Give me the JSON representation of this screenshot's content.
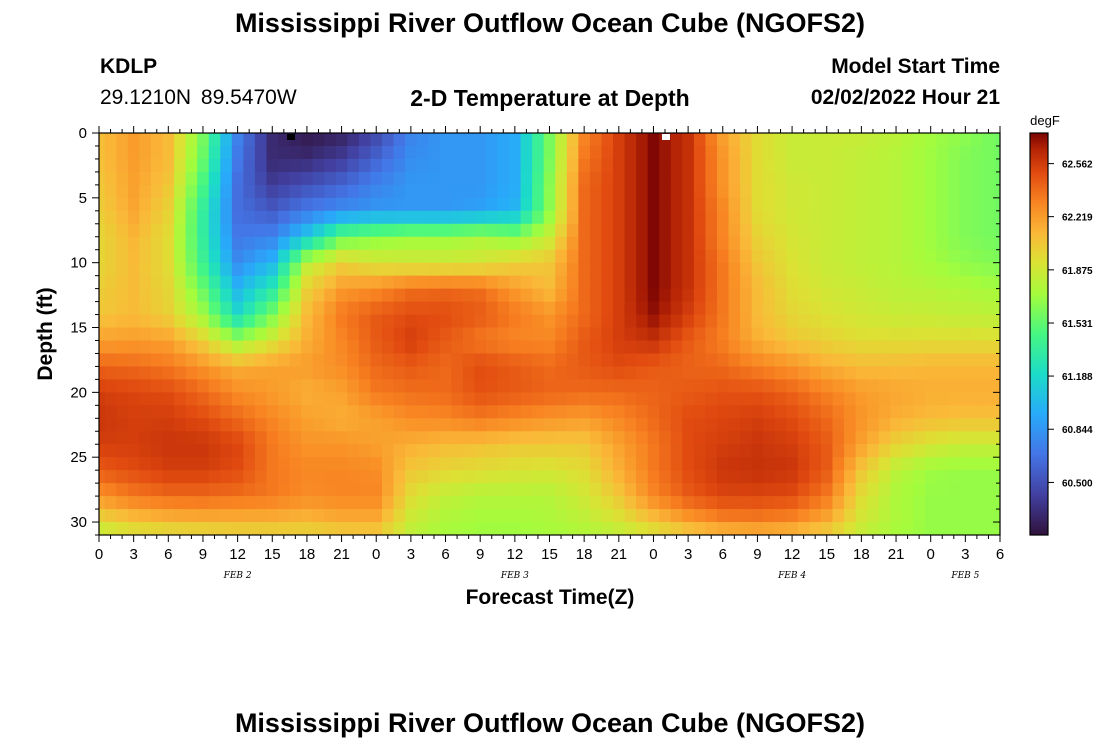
{
  "header": {
    "title": "Mississippi River Outflow Ocean Cube (NGOFS2)",
    "station_id": "KDLP",
    "station_coords": "29.1210N  89.5470W",
    "subtitle": "2-D Temperature at Depth",
    "model_start_label": "Model Start Time",
    "model_start_value": "02/02/2022 Hour 21"
  },
  "footer": {
    "title": "Mississippi River Outflow Ocean Cube (NGOFS2)"
  },
  "chart_data": {
    "type": "heatmap",
    "title": "2-D Temperature at Depth",
    "xlabel": "Forecast Time(Z)",
    "ylabel": "Depth (ft)",
    "x_tick_labels": [
      "0",
      "3",
      "6",
      "9",
      "12",
      "15",
      "18",
      "21",
      "0",
      "3",
      "6",
      "9",
      "12",
      "15",
      "18",
      "21",
      "0",
      "3",
      "6",
      "9",
      "12",
      "15",
      "18",
      "21",
      "0",
      "3",
      "6"
    ],
    "x_day_labels": [
      {
        "label": "FEB 2",
        "hour_index": 4
      },
      {
        "label": "FEB 3",
        "hour_index": 12
      },
      {
        "label": "FEB 4",
        "hour_index": 20
      },
      {
        "label": "FEB 5",
        "hour_index": 25
      }
    ],
    "y_ticks": [
      0,
      5,
      10,
      15,
      20,
      25,
      30
    ],
    "ylim": [
      0,
      31
    ],
    "colorbar": {
      "unit": "degF",
      "tick_labels": [
        "62.562",
        "62.219",
        "61.875",
        "61.531",
        "61.188",
        "60.844",
        "60.500"
      ],
      "range": [
        60.16,
        62.76
      ]
    },
    "depth_rows": [
      0,
      2,
      4,
      6,
      8,
      10,
      12,
      14,
      16,
      18,
      20,
      22,
      24,
      26,
      28,
      30,
      31
    ],
    "hour_cols": [
      0,
      3,
      6,
      9,
      12,
      15,
      18,
      21,
      24,
      27,
      30,
      33,
      36,
      39,
      42,
      45,
      48,
      51,
      54,
      57,
      60,
      63,
      66,
      69,
      72,
      75,
      78
    ],
    "values": [
      [
        62.08,
        62.22,
        62.1,
        61.6,
        60.75,
        60.3,
        60.2,
        60.25,
        60.45,
        60.75,
        60.85,
        60.85,
        60.95,
        61.6,
        62.3,
        62.55,
        62.75,
        62.6,
        62.2,
        61.95,
        61.85,
        61.85,
        61.85,
        61.8,
        61.72,
        61.65,
        61.58
      ],
      [
        62.08,
        62.22,
        62.1,
        61.55,
        60.7,
        60.3,
        60.3,
        60.4,
        60.6,
        60.8,
        60.85,
        60.85,
        60.95,
        61.6,
        62.35,
        62.55,
        62.75,
        62.6,
        62.25,
        61.95,
        61.85,
        61.85,
        61.82,
        61.78,
        61.7,
        61.62,
        61.58
      ],
      [
        62.05,
        62.2,
        62.05,
        61.45,
        60.65,
        60.4,
        60.5,
        60.6,
        60.75,
        60.85,
        60.85,
        60.85,
        60.95,
        61.65,
        62.4,
        62.55,
        62.75,
        62.6,
        62.25,
        61.95,
        61.88,
        61.85,
        61.82,
        61.78,
        61.7,
        61.62,
        61.58
      ],
      [
        62.02,
        62.18,
        62.0,
        61.35,
        60.65,
        60.55,
        60.7,
        60.8,
        60.85,
        60.85,
        60.85,
        60.9,
        61.0,
        61.65,
        62.4,
        62.55,
        62.75,
        62.6,
        62.3,
        61.95,
        61.88,
        61.85,
        61.82,
        61.78,
        61.7,
        61.62,
        61.58
      ],
      [
        61.98,
        62.12,
        61.95,
        61.35,
        60.7,
        60.75,
        61.1,
        61.55,
        61.65,
        61.7,
        61.7,
        61.75,
        61.65,
        61.85,
        62.4,
        62.55,
        62.75,
        62.6,
        62.3,
        62.0,
        61.9,
        61.85,
        61.82,
        61.78,
        61.7,
        61.62,
        61.58
      ],
      [
        61.98,
        62.1,
        61.95,
        61.4,
        60.8,
        61.0,
        61.8,
        62.0,
        61.9,
        61.88,
        61.88,
        61.9,
        62.0,
        62.05,
        62.4,
        62.55,
        62.75,
        62.6,
        62.35,
        62.05,
        61.92,
        61.85,
        61.82,
        61.78,
        61.72,
        61.66,
        61.62
      ],
      [
        62.02,
        62.1,
        61.98,
        61.55,
        61.0,
        61.3,
        62.0,
        62.22,
        62.28,
        62.38,
        62.4,
        62.38,
        62.22,
        62.1,
        62.4,
        62.55,
        62.75,
        62.6,
        62.35,
        62.1,
        61.95,
        61.88,
        61.85,
        61.8,
        61.78,
        61.75,
        61.72
      ],
      [
        62.05,
        62.1,
        62.0,
        61.7,
        61.2,
        61.6,
        62.1,
        62.35,
        62.45,
        62.5,
        62.5,
        62.45,
        62.35,
        62.25,
        62.4,
        62.55,
        62.72,
        62.55,
        62.35,
        62.1,
        61.98,
        61.92,
        61.88,
        61.85,
        61.84,
        61.82,
        61.8
      ],
      [
        62.2,
        62.22,
        62.2,
        62.0,
        61.7,
        61.9,
        62.15,
        62.3,
        62.45,
        62.55,
        62.45,
        62.35,
        62.3,
        62.3,
        62.45,
        62.55,
        62.6,
        62.45,
        62.32,
        62.15,
        62.05,
        62.0,
        61.95,
        61.95,
        61.95,
        61.95,
        61.95
      ],
      [
        62.42,
        62.4,
        62.35,
        62.25,
        62.15,
        62.2,
        62.22,
        62.28,
        62.4,
        62.45,
        62.4,
        62.5,
        62.45,
        62.4,
        62.45,
        62.5,
        62.45,
        62.42,
        62.4,
        62.32,
        62.25,
        62.15,
        62.1,
        62.1,
        62.12,
        62.12,
        62.12
      ],
      [
        62.55,
        62.52,
        62.5,
        62.4,
        62.28,
        62.22,
        62.15,
        62.2,
        62.35,
        62.38,
        62.4,
        62.48,
        62.45,
        62.42,
        62.4,
        62.4,
        62.42,
        62.45,
        62.48,
        62.48,
        62.42,
        62.32,
        62.22,
        62.18,
        62.15,
        62.15,
        62.15
      ],
      [
        62.58,
        62.55,
        62.55,
        62.5,
        62.4,
        62.3,
        62.2,
        62.15,
        62.2,
        62.28,
        62.3,
        62.35,
        62.3,
        62.25,
        62.22,
        62.3,
        62.4,
        62.5,
        62.52,
        62.55,
        62.5,
        62.4,
        62.25,
        62.15,
        62.1,
        62.08,
        62.08
      ],
      [
        62.55,
        62.55,
        62.58,
        62.58,
        62.52,
        62.35,
        62.25,
        62.25,
        62.2,
        62.15,
        62.1,
        62.08,
        62.05,
        62.05,
        62.05,
        62.2,
        62.35,
        62.5,
        62.55,
        62.58,
        62.55,
        62.45,
        62.2,
        62.0,
        61.9,
        61.85,
        61.85
      ],
      [
        62.45,
        62.5,
        62.55,
        62.55,
        62.5,
        62.35,
        62.3,
        62.3,
        62.28,
        62.05,
        61.98,
        61.95,
        61.92,
        61.9,
        61.95,
        62.15,
        62.35,
        62.5,
        62.58,
        62.6,
        62.58,
        62.45,
        62.05,
        61.8,
        61.7,
        61.68,
        61.68
      ],
      [
        62.25,
        62.35,
        62.4,
        62.4,
        62.38,
        62.35,
        62.28,
        62.3,
        62.3,
        61.95,
        61.82,
        61.78,
        61.78,
        61.78,
        61.88,
        62.05,
        62.3,
        62.45,
        62.52,
        62.52,
        62.5,
        62.35,
        61.95,
        61.75,
        61.68,
        61.68,
        61.68
      ],
      [
        61.95,
        62.05,
        62.1,
        62.12,
        62.12,
        62.12,
        62.1,
        62.15,
        62.15,
        61.85,
        61.75,
        61.72,
        61.72,
        61.75,
        61.8,
        61.9,
        62.05,
        62.2,
        62.3,
        62.32,
        62.28,
        62.15,
        61.88,
        61.75,
        61.68,
        61.68,
        61.68
      ],
      [
        61.8,
        61.88,
        61.9,
        61.92,
        61.95,
        61.95,
        61.95,
        61.98,
        62.0,
        61.8,
        61.72,
        61.7,
        61.7,
        61.72,
        61.75,
        61.8,
        61.88,
        61.98,
        62.05,
        62.08,
        62.05,
        61.98,
        61.82,
        61.72,
        61.68,
        61.68,
        61.68
      ]
    ]
  }
}
